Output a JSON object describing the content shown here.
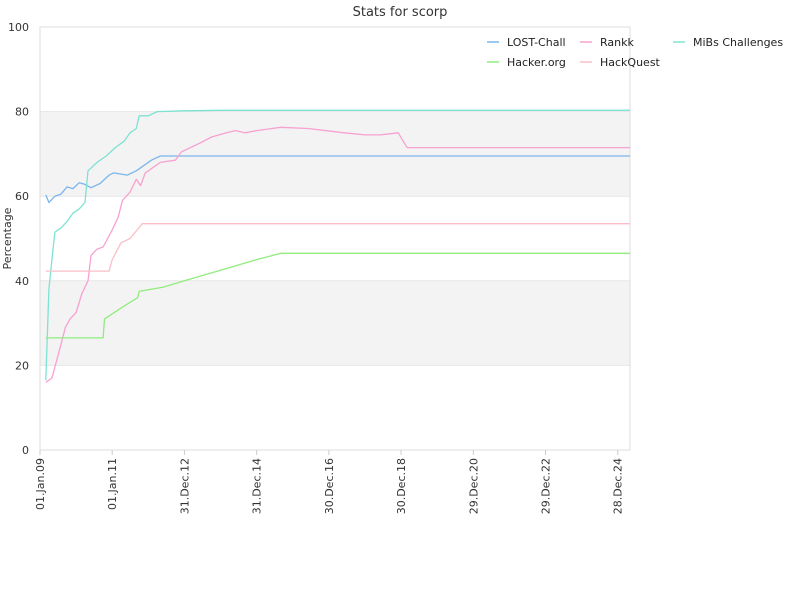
{
  "chart_data": {
    "type": "line",
    "title": "Stats for scorp",
    "ylabel": "Percentage",
    "xlabel": "",
    "ylim": [
      0,
      100
    ],
    "y_ticks": [
      "0",
      "20",
      "40",
      "60",
      "80",
      "100"
    ],
    "x_ticks": [
      {
        "date": "2009-01-01",
        "label": "01.Jan.09"
      },
      {
        "date": "2011-01-01",
        "label": "01.Jan.11"
      },
      {
        "date": "2012-12-31",
        "label": "31.Dec.12"
      },
      {
        "date": "2014-12-31",
        "label": "31.Dec.14"
      },
      {
        "date": "2016-12-30",
        "label": "30.Dec.16"
      },
      {
        "date": "2018-12-30",
        "label": "30.Dec.18"
      },
      {
        "date": "2020-12-29",
        "label": "29.Dec.20"
      },
      {
        "date": "2022-12-29",
        "label": "29.Dec.22"
      },
      {
        "date": "2024-12-28",
        "label": "28.Dec.24"
      }
    ],
    "xlim": [
      "2009-01-01",
      "2025-05-01"
    ],
    "grid": true,
    "legend_position": "top-right",
    "series": [
      {
        "name": "LOST-Chall",
        "color": "#7cb5ec",
        "points": [
          [
            "2009-03-01",
            60.3
          ],
          [
            "2009-04-01",
            58.5
          ],
          [
            "2009-06-01",
            60.0
          ],
          [
            "2009-08-01",
            60.5
          ],
          [
            "2009-10-01",
            62.2
          ],
          [
            "2009-12-01",
            61.8
          ],
          [
            "2010-02-01",
            63.2
          ],
          [
            "2010-04-01",
            62.8
          ],
          [
            "2010-06-01",
            62.0
          ],
          [
            "2010-09-01",
            63.0
          ],
          [
            "2010-12-01",
            65.0
          ],
          [
            "2011-01-15",
            65.5
          ],
          [
            "2011-06-01",
            65.0
          ],
          [
            "2011-09-01",
            66.0
          ],
          [
            "2012-02-01",
            68.5
          ],
          [
            "2012-05-01",
            69.5
          ],
          [
            "2013-06-01",
            69.5
          ],
          [
            "2016-01-01",
            69.5
          ],
          [
            "2020-01-01",
            69.5
          ],
          [
            "2024-12-01",
            69.5
          ],
          [
            "2025-05-01",
            69.5
          ]
        ]
      },
      {
        "name": "Rankk",
        "color": "#f7a1d0",
        "points": [
          [
            "2009-03-01",
            16.0
          ],
          [
            "2009-05-01",
            17.0
          ],
          [
            "2009-08-01",
            25.0
          ],
          [
            "2009-09-15",
            29.0
          ],
          [
            "2009-11-01",
            31.0
          ],
          [
            "2010-01-01",
            32.5
          ],
          [
            "2010-03-01",
            37.0
          ],
          [
            "2010-05-01",
            40.0
          ],
          [
            "2010-06-01",
            46.0
          ],
          [
            "2010-08-01",
            47.5
          ],
          [
            "2010-10-01",
            48.0
          ],
          [
            "2011-01-01",
            52.0
          ],
          [
            "2011-03-01",
            55.0
          ],
          [
            "2011-04-15",
            59.0
          ],
          [
            "2011-07-01",
            61.0
          ],
          [
            "2011-09-01",
            64.0
          ],
          [
            "2011-10-15",
            62.5
          ],
          [
            "2011-12-01",
            65.5
          ],
          [
            "2012-02-01",
            66.5
          ],
          [
            "2012-05-01",
            68.0
          ],
          [
            "2012-10-01",
            68.5
          ],
          [
            "2012-12-01",
            70.5
          ],
          [
            "2013-03-01",
            71.5
          ],
          [
            "2013-06-01",
            72.5
          ],
          [
            "2013-10-01",
            74.0
          ],
          [
            "2014-03-01",
            75.0
          ],
          [
            "2014-06-01",
            75.5
          ],
          [
            "2014-09-01",
            75.0
          ],
          [
            "2015-01-01",
            75.5
          ],
          [
            "2015-06-01",
            76.0
          ],
          [
            "2015-09-01",
            76.3
          ],
          [
            "2016-06-01",
            76.0
          ],
          [
            "2017-06-01",
            75.0
          ],
          [
            "2018-01-01",
            74.5
          ],
          [
            "2018-06-01",
            74.5
          ],
          [
            "2018-12-01",
            75.0
          ],
          [
            "2019-03-01",
            71.5
          ],
          [
            "2019-06-01",
            71.5
          ],
          [
            "2022-01-01",
            71.5
          ],
          [
            "2025-05-01",
            71.5
          ]
        ]
      },
      {
        "name": "MiBs Challenges",
        "color": "#7ee2d2",
        "points": [
          [
            "2009-03-01",
            16.5
          ],
          [
            "2009-04-01",
            38.0
          ],
          [
            "2009-05-01",
            45.0
          ],
          [
            "2009-06-01",
            51.5
          ],
          [
            "2009-08-01",
            52.5
          ],
          [
            "2009-10-01",
            54.0
          ],
          [
            "2009-12-01",
            56.0
          ],
          [
            "2010-02-01",
            57.0
          ],
          [
            "2010-04-01",
            58.5
          ],
          [
            "2010-05-01",
            66.0
          ],
          [
            "2010-08-01",
            68.0
          ],
          [
            "2010-11-01",
            69.5
          ],
          [
            "2011-02-01",
            71.5
          ],
          [
            "2011-05-01",
            73.0
          ],
          [
            "2011-07-01",
            75.0
          ],
          [
            "2011-09-01",
            76.0
          ],
          [
            "2011-10-01",
            79.0
          ],
          [
            "2012-01-01",
            79.0
          ],
          [
            "2012-04-01",
            80.0
          ],
          [
            "2013-01-01",
            80.2
          ],
          [
            "2014-01-01",
            80.3
          ],
          [
            "2020-01-01",
            80.3
          ],
          [
            "2025-05-01",
            80.3
          ]
        ]
      },
      {
        "name": "Hacker.org",
        "color": "#90ed7d",
        "points": [
          [
            "2009-03-01",
            26.5
          ],
          [
            "2010-10-01",
            26.5
          ],
          [
            "2010-10-15",
            31.0
          ],
          [
            "2011-06-01",
            34.5
          ],
          [
            "2011-09-15",
            36.0
          ],
          [
            "2011-10-01",
            37.5
          ],
          [
            "2012-06-01",
            38.5
          ],
          [
            "2013-01-01",
            40.0
          ],
          [
            "2014-01-01",
            42.5
          ],
          [
            "2015-01-01",
            45.0
          ],
          [
            "2015-09-01",
            46.5
          ],
          [
            "2020-01-01",
            46.5
          ],
          [
            "2025-05-01",
            46.5
          ]
        ]
      },
      {
        "name": "HackQuest",
        "color": "#f9bfc8",
        "points": [
          [
            "2009-03-01",
            42.3
          ],
          [
            "2010-12-01",
            42.3
          ],
          [
            "2011-01-01",
            45.0
          ],
          [
            "2011-04-01",
            49.0
          ],
          [
            "2011-07-01",
            50.0
          ],
          [
            "2011-11-01",
            53.5
          ],
          [
            "2012-06-01",
            53.5
          ],
          [
            "2018-01-01",
            53.5
          ],
          [
            "2025-05-01",
            53.5
          ]
        ]
      }
    ]
  }
}
